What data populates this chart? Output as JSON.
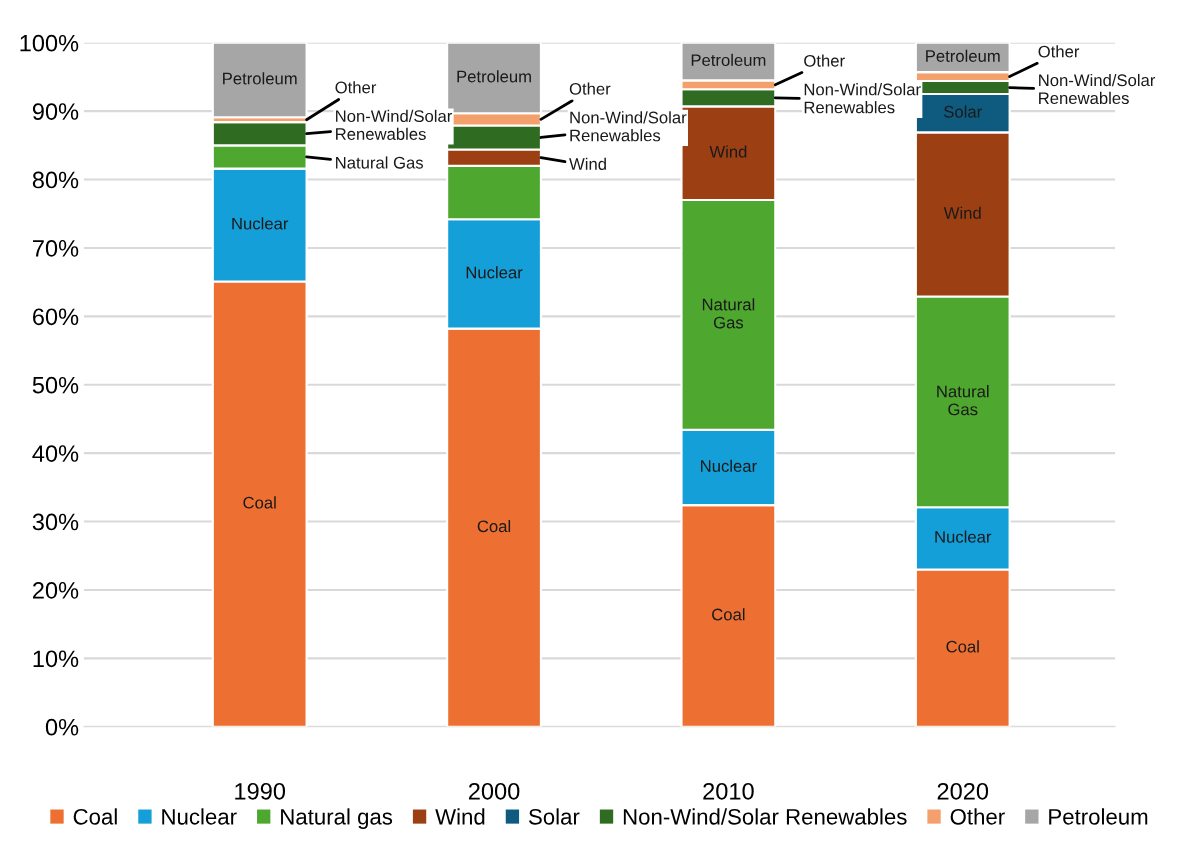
{
  "chart_data": {
    "type": "bar",
    "stacked": true,
    "categories": [
      "1990",
      "2000",
      "2010",
      "2020"
    ],
    "series": [
      {
        "name": "Coal",
        "color": "#ed7032",
        "values": [
          65.1,
          58.2,
          32.4,
          23.0
        ],
        "value_labels": [
          "Coal",
          "Coal",
          "Coal",
          "Coal"
        ]
      },
      {
        "name": "Nuclear",
        "color": "#149fd8",
        "values": [
          16.5,
          16.0,
          11.0,
          9.1
        ],
        "value_labels": [
          "Nuclear",
          "Nuclear",
          "Nuclear",
          "Nuclear"
        ]
      },
      {
        "name": "Natural gas",
        "color": "#4ea72e",
        "values": [
          3.4,
          7.8,
          33.6,
          30.8
        ],
        "value_labels": [
          "Natural Gas",
          null,
          "Natural\nGas",
          "Natural\nGas"
        ]
      },
      {
        "name": "Wind",
        "color": "#9c3f12",
        "values": [
          null,
          2.4,
          13.7,
          24.0
        ],
        "value_labels": [
          null,
          "Wind",
          "Wind",
          "Wind"
        ]
      },
      {
        "name": "Solar",
        "color": "#0e5b7f",
        "values": [
          null,
          null,
          null,
          5.6
        ],
        "value_labels": [
          null,
          null,
          null,
          "Solar"
        ]
      },
      {
        "name": "Non-Wind/Solar Renewables",
        "color": "#2f6b21",
        "values": [
          3.4,
          3.5,
          2.5,
          1.9
        ],
        "value_labels": [
          "Non-Wind/Solar\nRenewables",
          "Non-Wind/Solar\nRenewables",
          "Non-Wind/Solar\nRenewables",
          "Non-Wind/Solar\nRenewables"
        ]
      },
      {
        "name": "Other",
        "color": "#f4a06c",
        "values": [
          0.7,
          1.8,
          1.3,
          1.3
        ],
        "value_labels": [
          "Other",
          "Other",
          "Other",
          "Other"
        ]
      },
      {
        "name": "Petroleum",
        "color": "#a6a6a6",
        "values": [
          10.9,
          10.3,
          5.5,
          4.3
        ],
        "value_labels": [
          "Petroleum",
          "Petroleum",
          "Petroleum",
          "Petroleum"
        ]
      }
    ],
    "ylim": [
      0,
      100
    ],
    "yticks": [
      {
        "value": 0,
        "label": "0%"
      },
      {
        "value": 10,
        "label": "10%"
      },
      {
        "value": 20,
        "label": "20%"
      },
      {
        "value": 30,
        "label": "30%"
      },
      {
        "value": 40,
        "label": "40%"
      },
      {
        "value": 50,
        "label": "50%"
      },
      {
        "value": 60,
        "label": "60%"
      },
      {
        "value": 70,
        "label": "70%"
      },
      {
        "value": 80,
        "label": "80%"
      },
      {
        "value": 90,
        "label": "90%"
      },
      {
        "value": 100,
        "label": "100%"
      }
    ],
    "grid": "y",
    "legend": "bottom"
  }
}
